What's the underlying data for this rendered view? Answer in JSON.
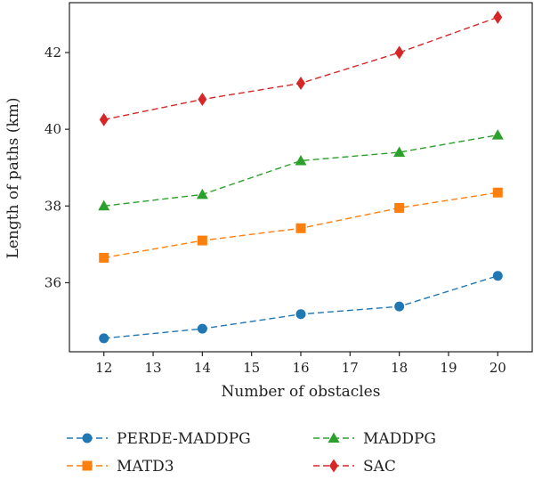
{
  "chart_data": {
    "type": "line",
    "xlabel": "Number of obstacles",
    "ylabel": "Length of paths (km)",
    "x": [
      12,
      14,
      16,
      18,
      20
    ],
    "xlim": [
      11.3,
      20.7
    ],
    "ylim": [
      34.2,
      43.3
    ],
    "xticks": [
      12,
      13,
      14,
      15,
      16,
      17,
      18,
      19,
      20
    ],
    "yticks": [
      36,
      38,
      40,
      42
    ],
    "grid": false,
    "legend_position": "below",
    "series": [
      {
        "name": "PERDE-MADDPG",
        "color": "#1f77b4",
        "marker": "circle",
        "values": [
          34.55,
          34.8,
          35.18,
          35.38,
          36.18
        ]
      },
      {
        "name": "MATD3",
        "color": "#ff7f0e",
        "marker": "square",
        "values": [
          36.65,
          37.1,
          37.42,
          37.95,
          38.35
        ]
      },
      {
        "name": "MADDPG",
        "color": "#2ca02c",
        "marker": "triangle",
        "values": [
          38.0,
          38.3,
          39.18,
          39.4,
          39.85
        ]
      },
      {
        "name": "SAC",
        "color": "#d62728",
        "marker": "diamond",
        "values": [
          40.25,
          40.78,
          41.2,
          42.0,
          42.92
        ]
      }
    ]
  }
}
